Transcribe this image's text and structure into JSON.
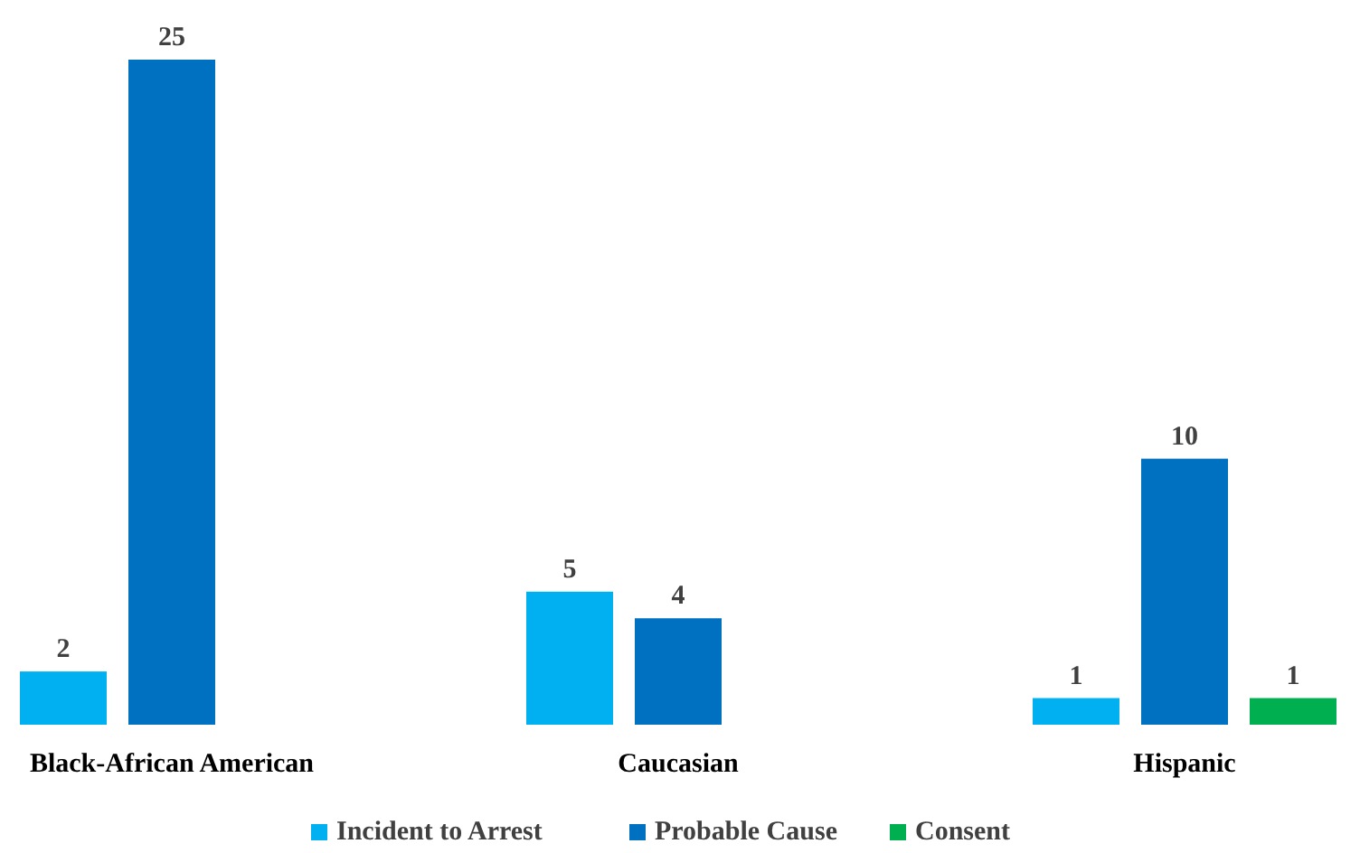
{
  "chart_data": {
    "type": "bar",
    "categories": [
      "Black-African American",
      "Caucasian",
      "Hispanic"
    ],
    "series": [
      {
        "name": "Incident to Arrest",
        "color": "#00b0f0",
        "values": [
          2,
          5,
          1
        ]
      },
      {
        "name": "Probable Cause",
        "color": "#0070c0",
        "values": [
          25,
          4,
          10
        ]
      },
      {
        "name": "Consent",
        "color": "#00b050",
        "values": [
          null,
          null,
          1
        ]
      }
    ],
    "data_labels": true,
    "legend": "bottom",
    "grid": false
  }
}
